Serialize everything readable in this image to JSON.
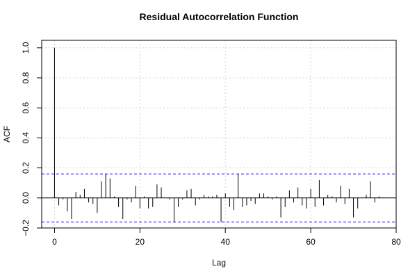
{
  "chart_data": {
    "type": "bar",
    "title": "Residual Autocorrelation Function",
    "xlabel": "Lag",
    "ylabel": "ACF",
    "xlim": [
      -3,
      80
    ],
    "ylim": [
      -0.2,
      1.05
    ],
    "x_ticks": [
      0,
      20,
      40,
      60,
      80
    ],
    "y_ticks": [
      -0.2,
      0.0,
      0.2,
      0.4,
      0.6,
      0.8,
      1.0
    ],
    "x_tick_labels": [
      "0",
      "20",
      "40",
      "60",
      "80"
    ],
    "y_tick_labels": [
      "−0.2",
      "0.0",
      "0.2",
      "0.4",
      "0.6",
      "0.8",
      "1.0"
    ],
    "grid": true,
    "confidence_bounds": [
      0.16,
      -0.16
    ],
    "colors": {
      "bars": "#000000",
      "confidence": "#0000ff",
      "grid": "#d3d3d3",
      "zero_line": "#000000"
    },
    "series": [
      {
        "lags": [
          0,
          1,
          2,
          3,
          4,
          5,
          6,
          7,
          8,
          9,
          10,
          11,
          12,
          13,
          14,
          15,
          16,
          17,
          18,
          19,
          20,
          21,
          22,
          23,
          24,
          25,
          26,
          27,
          28,
          29,
          30,
          31,
          32,
          33,
          34,
          35,
          36,
          37,
          38,
          39,
          40,
          41,
          42,
          43,
          44,
          45,
          46,
          47,
          48,
          49,
          50,
          51,
          52,
          53,
          54,
          55,
          56,
          57,
          58,
          59,
          60,
          61,
          62,
          63,
          64,
          65,
          66,
          67,
          68,
          69,
          70,
          71,
          72,
          73,
          74,
          75,
          76,
          77
        ],
        "values": [
          1.0,
          -0.05,
          -0.01,
          -0.09,
          -0.14,
          0.04,
          0.02,
          0.06,
          -0.03,
          -0.04,
          -0.1,
          0.11,
          0.16,
          0.13,
          0.01,
          -0.06,
          -0.14,
          -0.01,
          -0.03,
          0.08,
          -0.07,
          0.01,
          -0.07,
          -0.06,
          0.09,
          0.07,
          0.0,
          -0.01,
          -0.16,
          -0.06,
          -0.01,
          0.05,
          0.06,
          -0.05,
          -0.01,
          0.02,
          0.01,
          0.01,
          0.02,
          -0.16,
          0.03,
          -0.06,
          -0.08,
          0.16,
          -0.06,
          -0.05,
          -0.02,
          -0.04,
          0.03,
          0.03,
          0.01,
          -0.01,
          0.01,
          -0.13,
          -0.06,
          0.05,
          -0.03,
          0.07,
          -0.05,
          -0.07,
          0.06,
          -0.06,
          0.12,
          -0.05,
          0.02,
          0.01,
          -0.03,
          0.08,
          -0.04,
          0.06,
          -0.13,
          -0.07,
          0.0,
          0.02,
          0.11,
          -0.03,
          0.01,
          0.0
        ]
      }
    ]
  }
}
